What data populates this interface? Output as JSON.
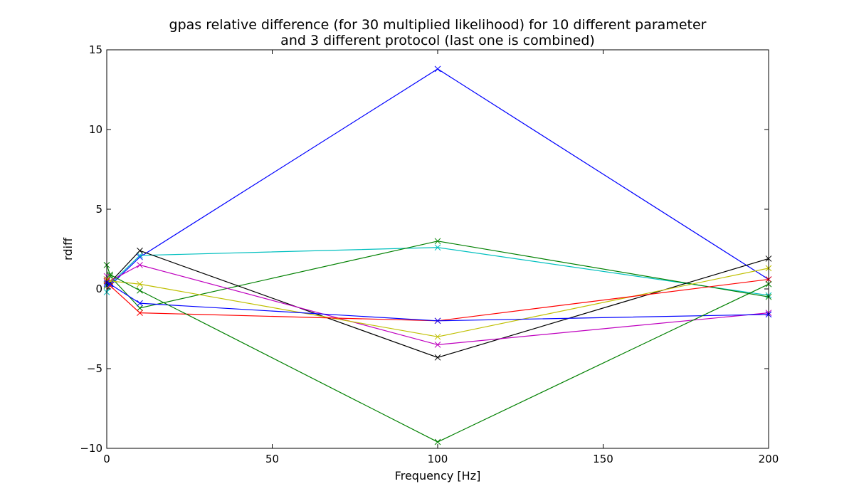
{
  "chart_data": {
    "type": "line",
    "title_lines": [
      "gpas relative difference (for 30 multiplied likelihood) for 10 different parameter",
      "and 3 different protocol (last one is combined)"
    ],
    "xlabel": "Frequency [Hz]",
    "ylabel": "rdiff",
    "xlim": [
      0,
      200
    ],
    "ylim": [
      -10,
      15
    ],
    "xticks": [
      0,
      50,
      100,
      150,
      200
    ],
    "xtick_labels": [
      "0",
      "50",
      "100",
      "150",
      "200"
    ],
    "yticks": [
      -10,
      -5,
      0,
      5,
      10,
      15
    ],
    "ytick_labels": [
      "−10",
      "−5",
      "0",
      "5",
      "10",
      "15"
    ],
    "grid": false,
    "marker": "x",
    "x": [
      0,
      1,
      10,
      100,
      200
    ],
    "series": [
      {
        "color": "#0000ff",
        "values": [
          0.3,
          0.2,
          2.0,
          13.8,
          0.6
        ]
      },
      {
        "color": "#00bfbf",
        "values": [
          -0.2,
          0.3,
          2.1,
          2.6,
          -0.4
        ]
      },
      {
        "color": "#008000",
        "values": [
          0.2,
          0.8,
          -1.2,
          3.0,
          -0.5
        ]
      },
      {
        "color": "#000000",
        "values": [
          0.6,
          0.4,
          2.4,
          -4.3,
          1.9
        ]
      },
      {
        "color": "#bf00bf",
        "values": [
          0.8,
          0.5,
          1.5,
          -3.5,
          -1.5
        ]
      },
      {
        "color": "#bfbf00",
        "values": [
          0.6,
          0.5,
          0.3,
          -3.0,
          1.3
        ]
      },
      {
        "color": "#ff0000",
        "values": [
          0.5,
          0.2,
          -1.5,
          -2.0,
          0.6
        ]
      },
      {
        "color": "#0000ff",
        "values": [
          0.4,
          0.3,
          -0.9,
          -2.0,
          -1.6
        ]
      },
      {
        "color": "#008000",
        "values": [
          1.5,
          0.9,
          -0.1,
          -9.6,
          0.3
        ]
      }
    ]
  }
}
